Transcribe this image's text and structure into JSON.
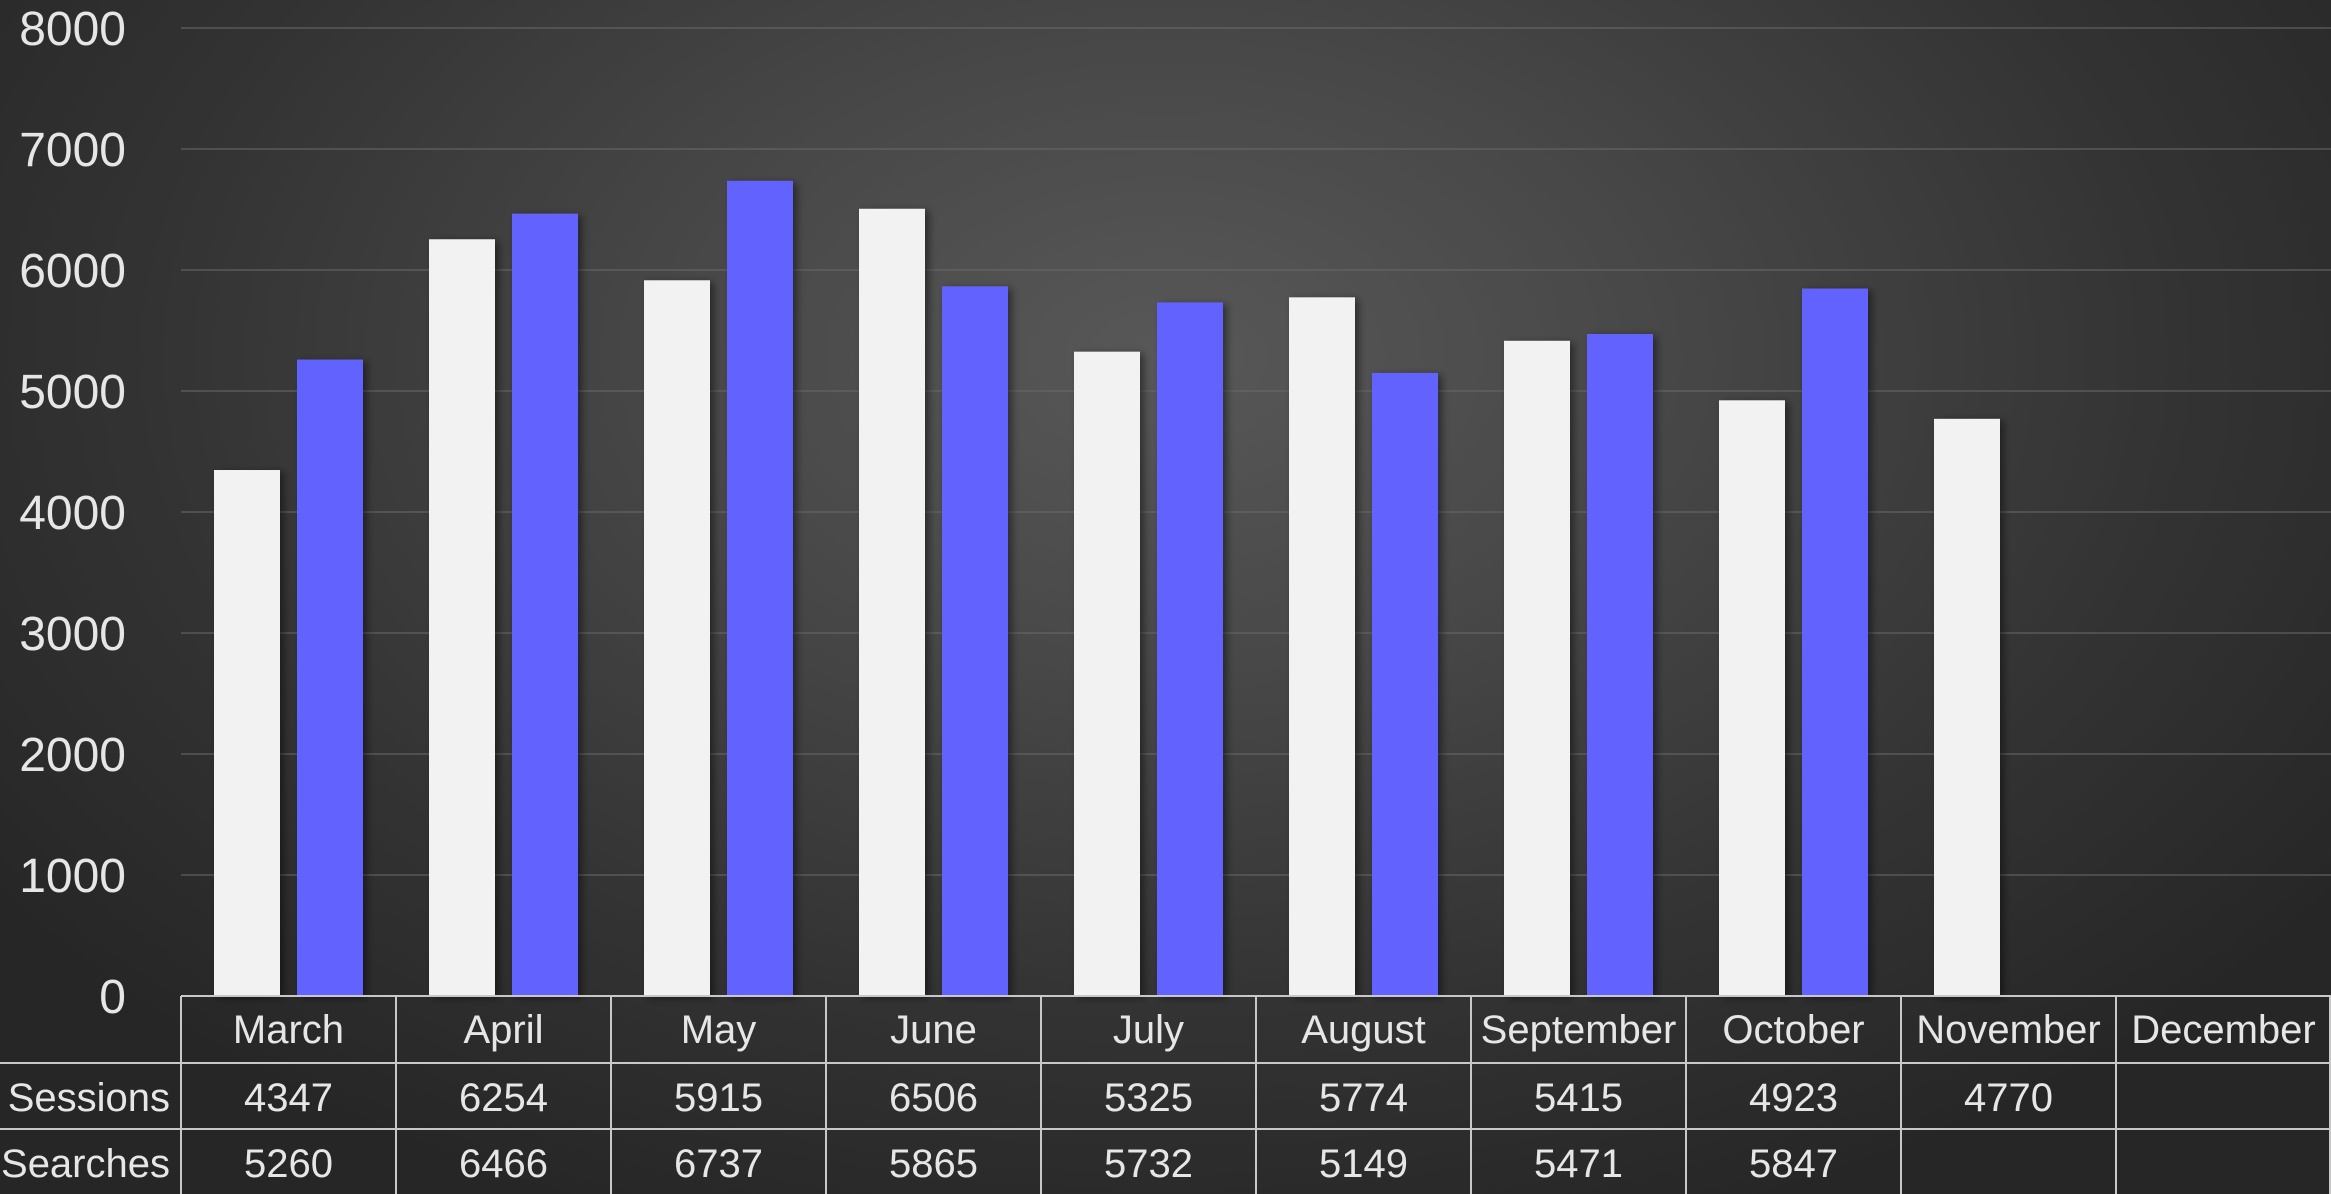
{
  "chart_data": {
    "type": "bar",
    "categories": [
      "March",
      "April",
      "May",
      "June",
      "July",
      "August",
      "September",
      "October",
      "November",
      "December"
    ],
    "series": [
      {
        "name": "Sessions",
        "values": [
          4347,
          6254,
          5915,
          6506,
          5325,
          5774,
          5415,
          4923,
          4770,
          null
        ],
        "color": "#f2f2f2"
      },
      {
        "name": "t Searches",
        "values": [
          5260,
          6466,
          6737,
          5865,
          5732,
          5149,
          5471,
          5847,
          null,
          null
        ],
        "color": "#6262ff"
      }
    ],
    "y_ticks": [
      "0",
      "1000",
      "2000",
      "3000",
      "4000",
      "5000",
      "6000",
      "7000",
      "8000"
    ],
    "ylim": [
      0,
      8000
    ],
    "grid": true,
    "legend": "data table below chart",
    "data_table": {
      "rows": [
        {
          "label": "Sessions",
          "cells": [
            "4347",
            "6254",
            "5915",
            "6506",
            "5325",
            "5774",
            "5415",
            "4923",
            "4770",
            ""
          ]
        },
        {
          "label": "t Searches",
          "cells": [
            "5260",
            "6466",
            "6737",
            "5865",
            "5732",
            "5149",
            "5471",
            "5847",
            "",
            ""
          ]
        }
      ]
    }
  }
}
